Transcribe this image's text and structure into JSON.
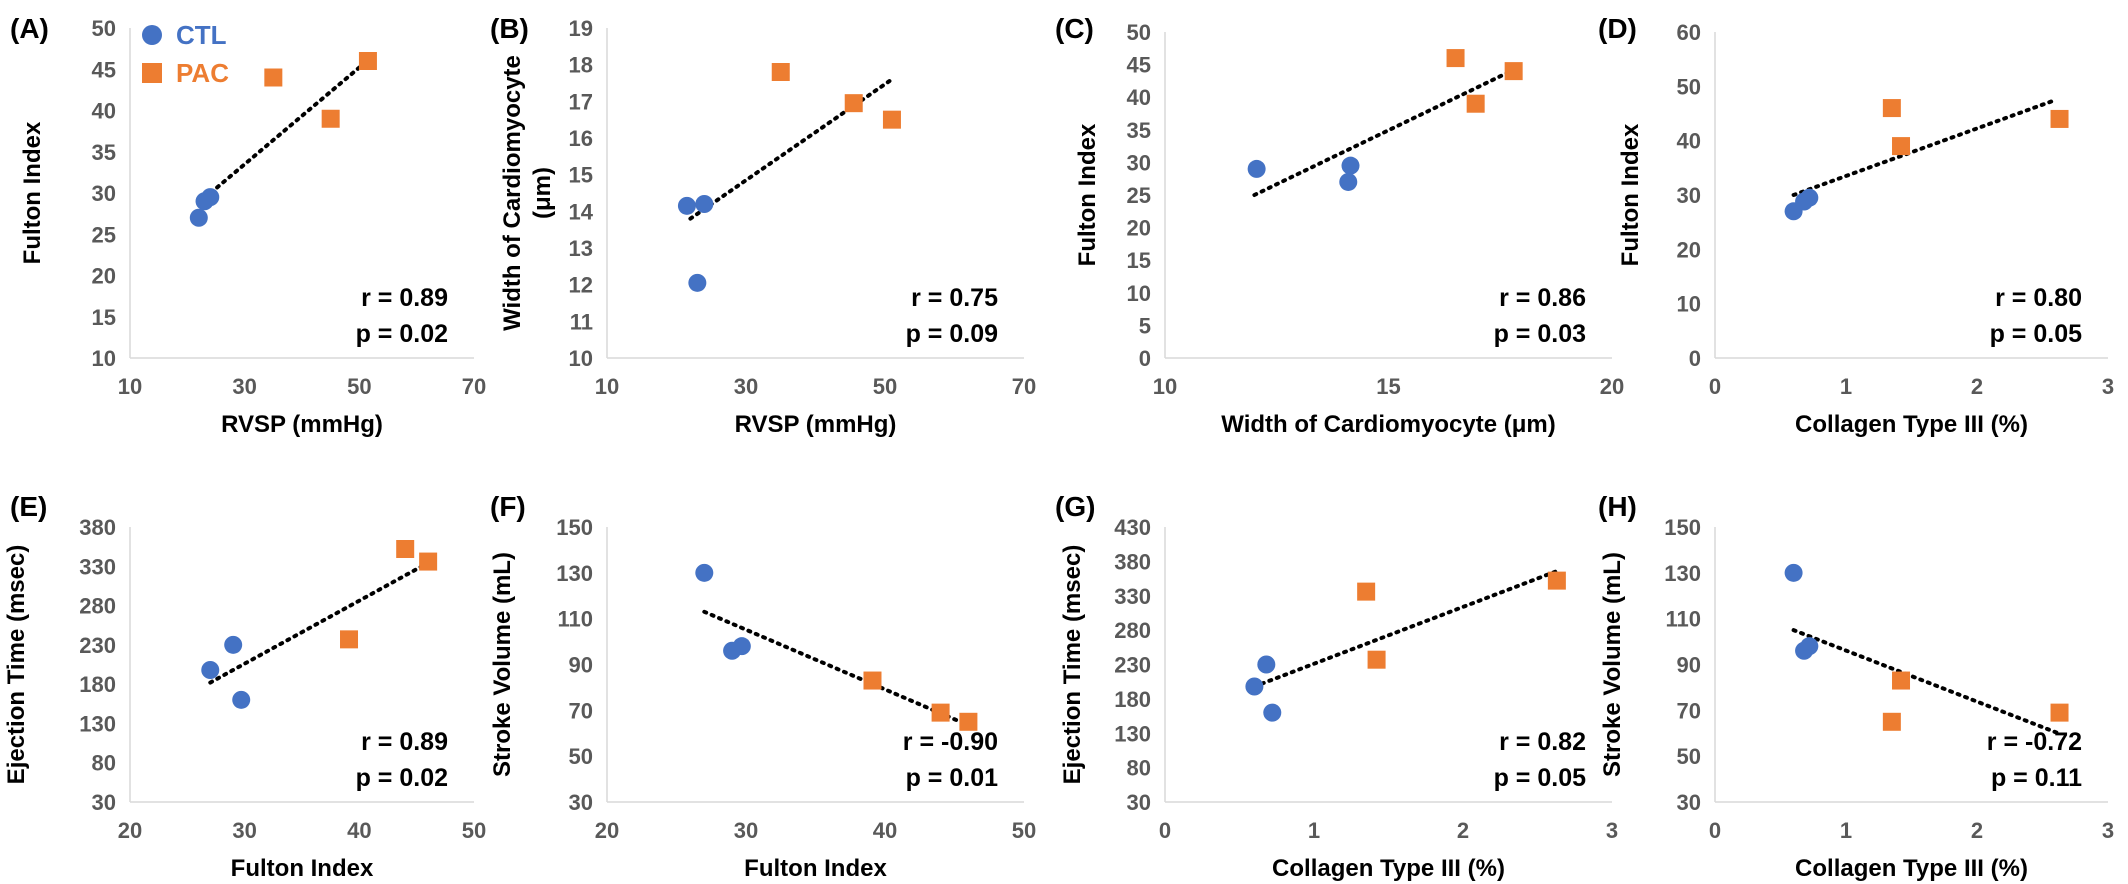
{
  "colors": {
    "CTL": "#4472C4",
    "PAC": "#ED7D31",
    "axis": "#D9D9D9",
    "text": "#000000",
    "tick": "#595959"
  },
  "legend": {
    "items": [
      {
        "name": "CTL",
        "marker": "circle"
      },
      {
        "name": "PAC",
        "marker": "square"
      }
    ],
    "placement": "top-left of panel A"
  },
  "chart_data": [
    {
      "panel": "(A)",
      "type": "scatter",
      "grid": false,
      "xlabel": "RVSP (mmHg)",
      "ylabel": "Fulton Index",
      "xlim": [
        10,
        70
      ],
      "ylim": [
        10,
        50
      ],
      "xticks": [
        "10",
        "30",
        "50",
        "70"
      ],
      "yticks": [
        "10",
        "15",
        "20",
        "25",
        "30",
        "35",
        "40",
        "45",
        "50"
      ],
      "series": [
        {
          "name": "CTL",
          "points": [
            [
              22,
              27
            ],
            [
              23,
              29
            ],
            [
              24,
              29.5
            ]
          ]
        },
        {
          "name": "PAC",
          "points": [
            [
              35,
              44
            ],
            [
              45,
              39
            ],
            [
              51.5,
              46
            ]
          ]
        }
      ],
      "trendline": [
        [
          22,
          28.8
        ],
        [
          51,
          45.8
        ]
      ],
      "stats": [
        "r = 0.89",
        "p = 0.02"
      ]
    },
    {
      "panel": "(B)",
      "type": "scatter",
      "grid": false,
      "xlabel": "RVSP (mmHg)",
      "ylabel": "Width of Cardiomyocyte (μm)",
      "xlim": [
        10,
        70
      ],
      "ylim": [
        10,
        19
      ],
      "xticks": [
        "10",
        "30",
        "50",
        "70"
      ],
      "yticks": [
        "10",
        "11",
        "12",
        "13",
        "14",
        "15",
        "16",
        "17",
        "18",
        "19"
      ],
      "series": [
        {
          "name": "CTL",
          "points": [
            [
              21.5,
              14.15
            ],
            [
              24,
              14.2
            ],
            [
              23,
              12.05
            ]
          ]
        },
        {
          "name": "PAC",
          "points": [
            [
              35,
              17.8
            ],
            [
              45.5,
              16.95
            ],
            [
              51,
              16.5
            ]
          ]
        }
      ],
      "trendline": [
        [
          22,
          13.8
        ],
        [
          51,
          17.6
        ]
      ],
      "stats": [
        "r = 0.75",
        "p = 0.09"
      ]
    },
    {
      "panel": "(C)",
      "type": "scatter",
      "grid": false,
      "xlabel": "Width of Cardiomyocyte (μm)",
      "ylabel": "Fulton Index",
      "xlim": [
        10,
        20
      ],
      "ylim": [
        0,
        50
      ],
      "xticks": [
        "10",
        "15",
        "20"
      ],
      "yticks": [
        "0",
        "5",
        "10",
        "15",
        "20",
        "25",
        "30",
        "35",
        "40",
        "45",
        "50"
      ],
      "series": [
        {
          "name": "CTL",
          "points": [
            [
              12.05,
              29
            ],
            [
              14.15,
              29.5
            ],
            [
              14.1,
              27
            ]
          ]
        },
        {
          "name": "PAC",
          "points": [
            [
              16.5,
              46
            ],
            [
              16.95,
              39
            ],
            [
              17.8,
              44
            ]
          ]
        }
      ],
      "trendline": [
        [
          12,
          25
        ],
        [
          17.8,
          44.2
        ]
      ],
      "stats": [
        "r = 0.86",
        "p = 0.03"
      ]
    },
    {
      "panel": "(D)",
      "type": "scatter",
      "grid": false,
      "xlabel": "Collagen Type III (%)",
      "ylabel": "Fulton Index",
      "xlim": [
        0,
        3
      ],
      "ylim": [
        0,
        60
      ],
      "xticks": [
        "0",
        "1",
        "2",
        "3"
      ],
      "yticks": [
        "0",
        "10",
        "20",
        "30",
        "40",
        "50",
        "60"
      ],
      "series": [
        {
          "name": "CTL",
          "points": [
            [
              0.6,
              27
            ],
            [
              0.68,
              28.8
            ],
            [
              0.72,
              29.5
            ]
          ]
        },
        {
          "name": "PAC",
          "points": [
            [
              1.35,
              46
            ],
            [
              1.42,
              39
            ],
            [
              2.63,
              44
            ]
          ]
        }
      ],
      "trendline": [
        [
          0.6,
          30
        ],
        [
          2.6,
          47.5
        ]
      ],
      "stats": [
        "r = 0.80",
        "p = 0.05"
      ]
    },
    {
      "panel": "(E)",
      "type": "scatter",
      "grid": false,
      "xlabel": "Fulton Index",
      "ylabel": "Ejection Time (msec)",
      "xlim": [
        20,
        50
      ],
      "ylim": [
        30,
        380
      ],
      "xticks": [
        "20",
        "30",
        "40",
        "50"
      ],
      "yticks": [
        "30",
        "80",
        "130",
        "180",
        "230",
        "280",
        "330",
        "380"
      ],
      "series": [
        {
          "name": "CTL",
          "points": [
            [
              27,
              198
            ],
            [
              29,
              230
            ],
            [
              29.7,
              160
            ]
          ]
        },
        {
          "name": "PAC",
          "points": [
            [
              39.1,
              237
            ],
            [
              44,
              352
            ],
            [
              46,
              336
            ]
          ]
        }
      ],
      "trendline": [
        [
          27,
          182
        ],
        [
          46.2,
          336
        ]
      ],
      "stats": [
        "r = 0.89",
        "p = 0.02"
      ]
    },
    {
      "panel": "(F)",
      "type": "scatter",
      "grid": false,
      "xlabel": "Fulton Index",
      "ylabel": "Stroke Volume  (mL)",
      "xlim": [
        20,
        50
      ],
      "ylim": [
        30,
        150
      ],
      "xticks": [
        "20",
        "30",
        "40",
        "50"
      ],
      "yticks": [
        "30",
        "50",
        "70",
        "90",
        "110",
        "130",
        "150"
      ],
      "series": [
        {
          "name": "CTL",
          "points": [
            [
              27,
              130
            ],
            [
              29,
              96
            ],
            [
              29.7,
              98
            ]
          ]
        },
        {
          "name": "PAC",
          "points": [
            [
              39.1,
              83
            ],
            [
              44,
              69
            ],
            [
              46,
              65
            ]
          ]
        }
      ],
      "trendline": [
        [
          27,
          113
        ],
        [
          46,
          63.5
        ]
      ],
      "stats": [
        "r = -0.90",
        "p = 0.01"
      ]
    },
    {
      "panel": "(G)",
      "type": "scatter",
      "grid": false,
      "xlabel": "Collagen Type III (%)",
      "ylabel": "Ejection Time (msec)",
      "xlim": [
        0,
        3
      ],
      "ylim": [
        30,
        430
      ],
      "xticks": [
        "0",
        "1",
        "2",
        "3"
      ],
      "yticks": [
        "30",
        "80",
        "130",
        "180",
        "230",
        "280",
        "330",
        "380",
        "430"
      ],
      "series": [
        {
          "name": "CTL",
          "points": [
            [
              0.6,
              198
            ],
            [
              0.68,
              230
            ],
            [
              0.72,
              160
            ]
          ]
        },
        {
          "name": "PAC",
          "points": [
            [
              1.35,
              336
            ],
            [
              1.42,
              237
            ],
            [
              2.63,
              352
            ]
          ]
        }
      ],
      "trendline": [
        [
          0.6,
          198
        ],
        [
          2.62,
          365
        ]
      ],
      "stats": [
        "r = 0.82",
        "p = 0.05"
      ]
    },
    {
      "panel": "(H)",
      "type": "scatter",
      "grid": false,
      "xlabel": "Collagen Type III (%)",
      "ylabel": "Stroke Volume  (mL)",
      "xlim": [
        0,
        3
      ],
      "ylim": [
        30,
        150
      ],
      "xticks": [
        "0",
        "1",
        "2",
        "3"
      ],
      "yticks": [
        "30",
        "50",
        "70",
        "90",
        "110",
        "130",
        "150"
      ],
      "series": [
        {
          "name": "CTL",
          "points": [
            [
              0.6,
              130
            ],
            [
              0.68,
              96
            ],
            [
              0.72,
              98
            ]
          ]
        },
        {
          "name": "PAC",
          "points": [
            [
              1.35,
              65
            ],
            [
              1.42,
              83
            ],
            [
              2.63,
              69
            ]
          ]
        }
      ],
      "trendline": [
        [
          0.6,
          105
        ],
        [
          2.62,
          60
        ]
      ],
      "stats": [
        "r = -0.72",
        "p = 0.11"
      ]
    }
  ]
}
